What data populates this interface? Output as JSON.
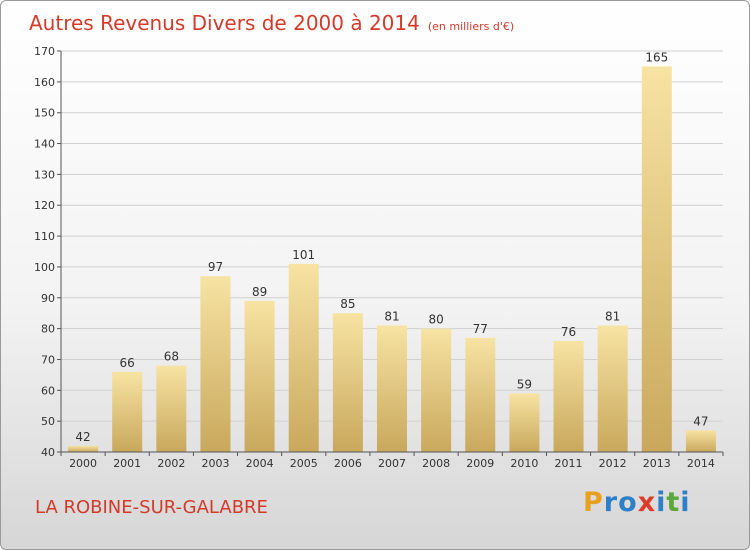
{
  "header": {
    "title": "Autres Revenus Divers de 2000 à 2014",
    "unit": "(en milliers d'€)"
  },
  "footer": {
    "commune": "LA ROBINE-SUR-GALABRE",
    "brand": {
      "letters": [
        "P",
        "r",
        "o",
        "x",
        "i",
        "t",
        "i"
      ],
      "colors": [
        "#e8a020",
        "#2d7fc8",
        "#2d7fc8",
        "#e03a2a",
        "#2d7fc8",
        "#5aa83a",
        "#2d7fc8"
      ]
    }
  },
  "chart_data": {
    "type": "bar",
    "title": "Autres Revenus Divers de 2000 à 2014",
    "xlabel": "",
    "ylabel": "",
    "categories": [
      "2000",
      "2001",
      "2002",
      "2003",
      "2004",
      "2005",
      "2006",
      "2007",
      "2008",
      "2009",
      "2010",
      "2011",
      "2012",
      "2013",
      "2014"
    ],
    "values": [
      42,
      66,
      68,
      97,
      89,
      101,
      85,
      81,
      80,
      77,
      59,
      76,
      81,
      165,
      47
    ],
    "ylim": [
      40,
      170
    ],
    "yticks": [
      40,
      50,
      60,
      70,
      80,
      90,
      100,
      110,
      120,
      130,
      140,
      150,
      160,
      170
    ],
    "grid": true,
    "legend": "none",
    "colors": {
      "bar_light": "#f7e3a3",
      "bar_dark": "#c9a85c",
      "grid": "#d0d0d0",
      "axis": "#555555"
    }
  }
}
